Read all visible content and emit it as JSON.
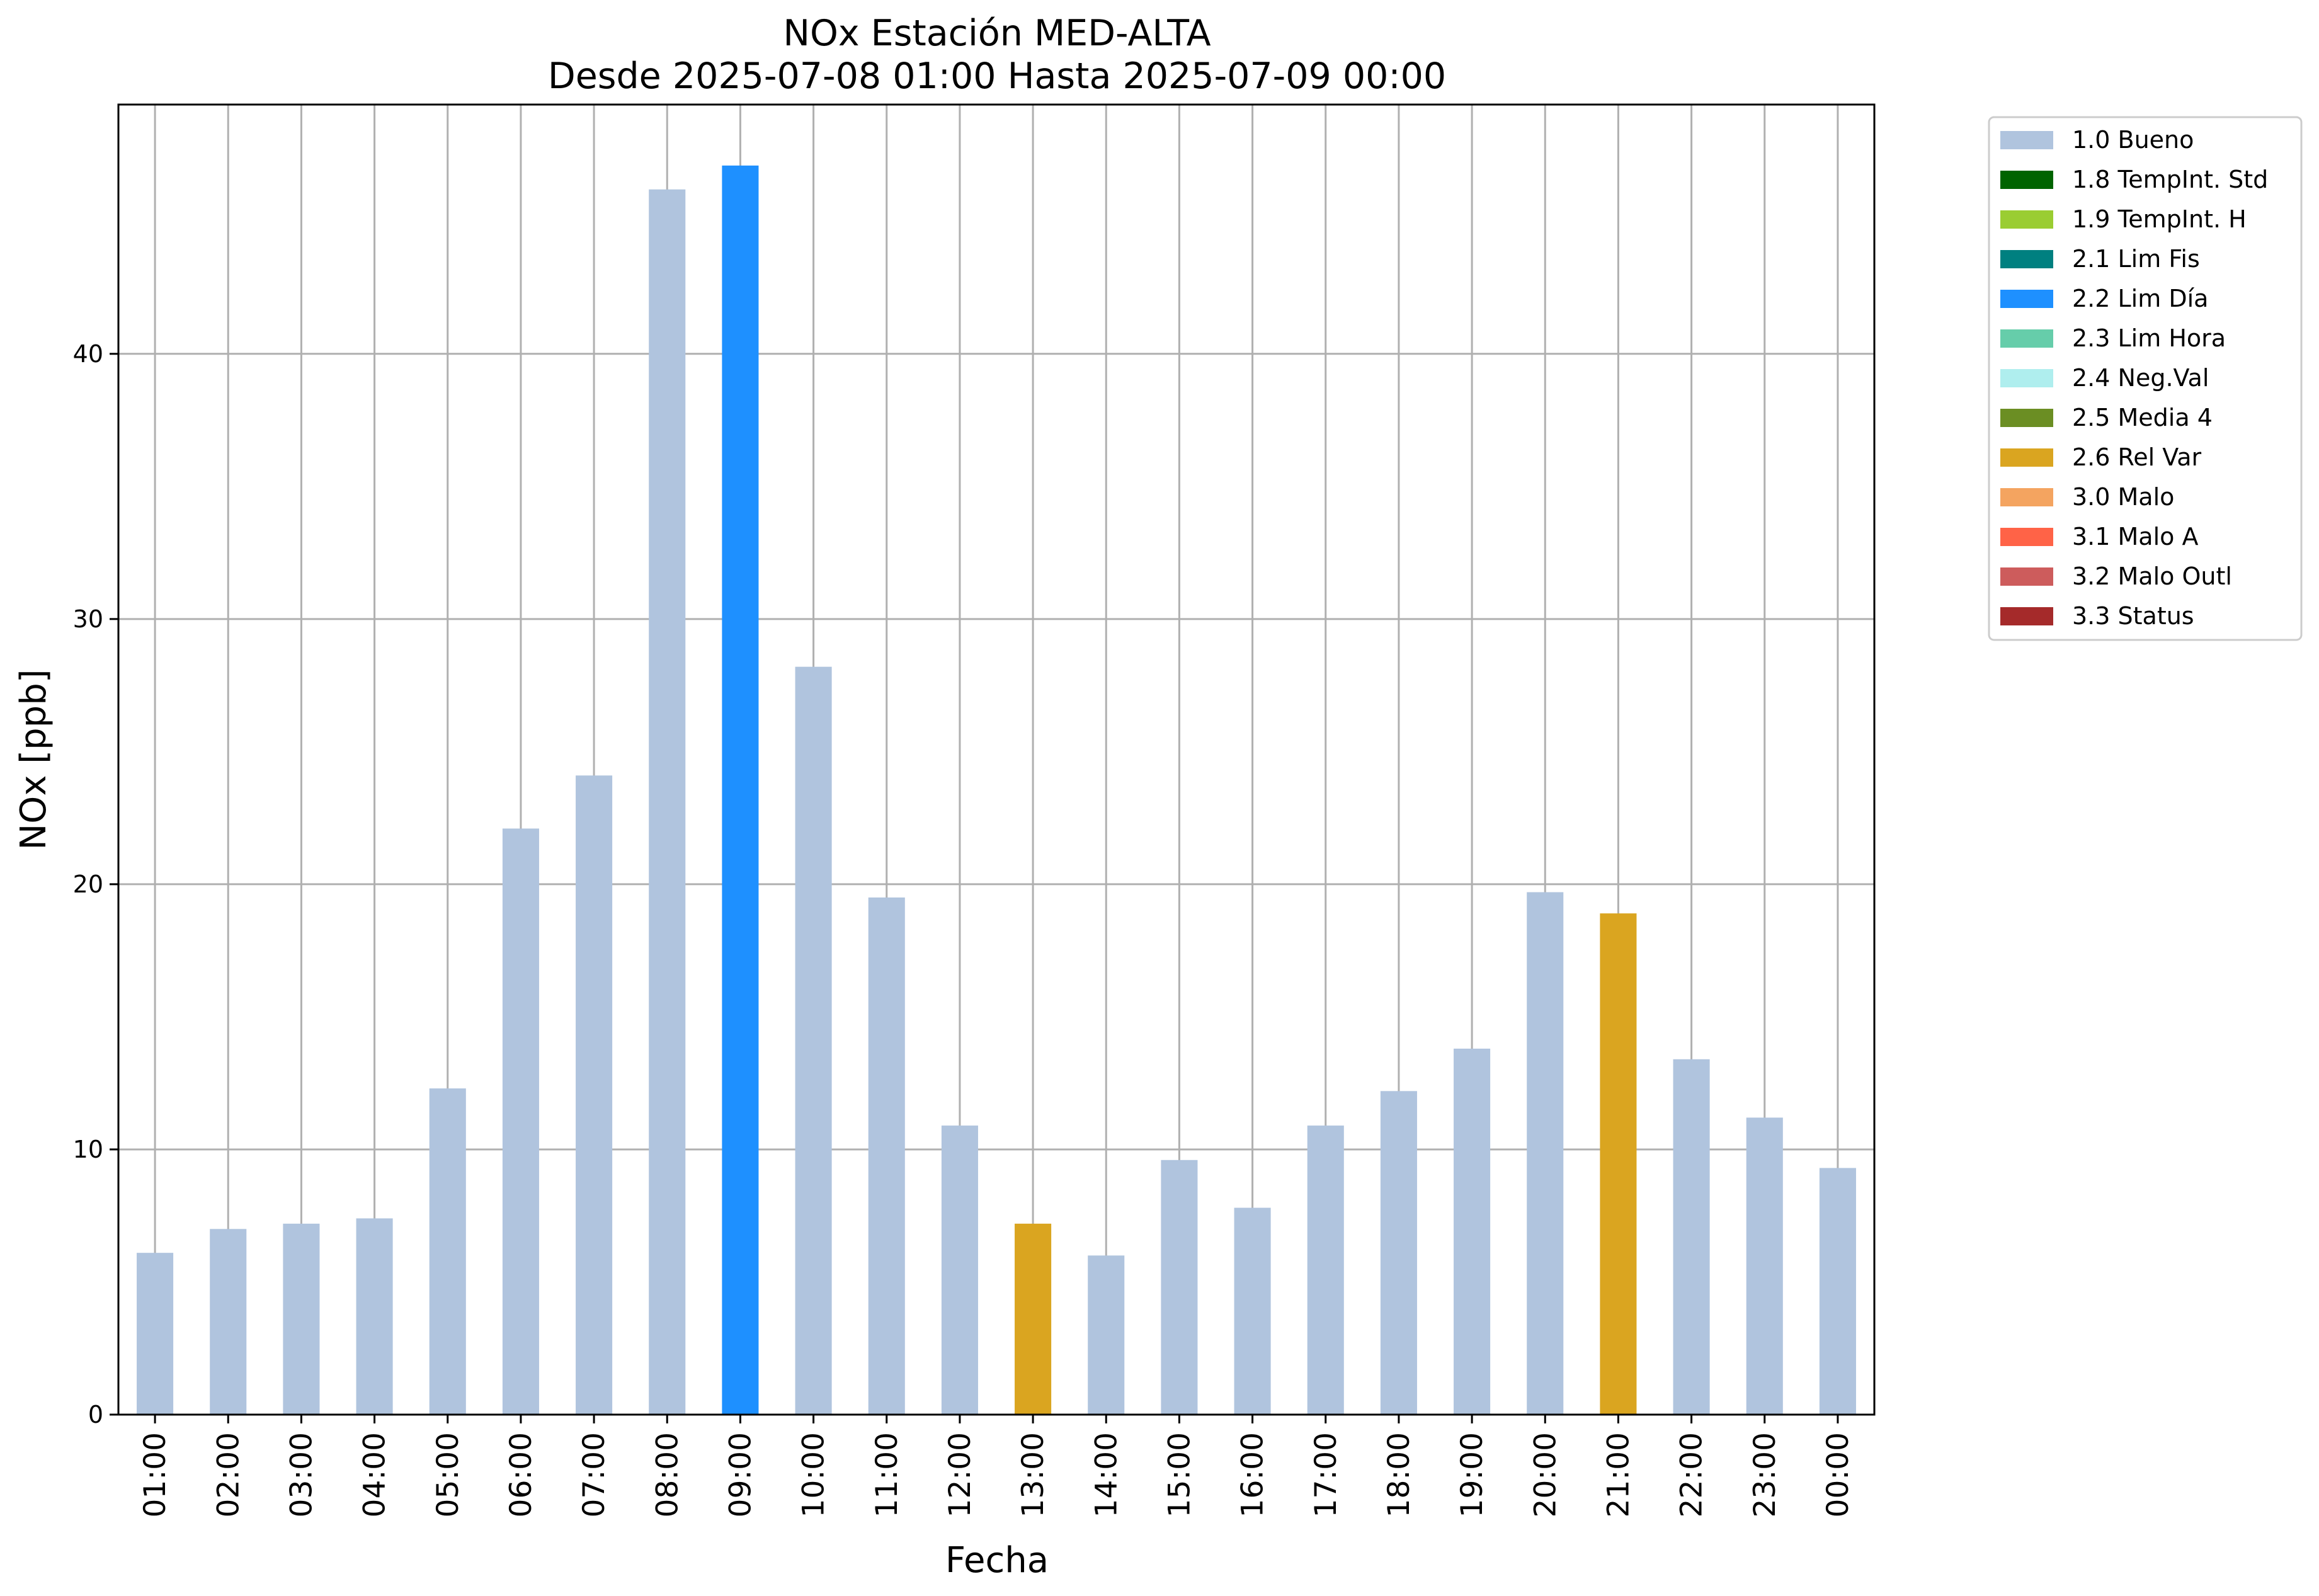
{
  "chart_data": {
    "type": "bar",
    "title": [
      "NOx Estación MED-ALTA",
      "Desde 2025-07-08 01:00 Hasta 2025-07-09 00:00"
    ],
    "xlabel": "Fecha",
    "ylabel": "NOx [ppb]",
    "ylim": [
      0,
      49.4
    ],
    "yticks": [
      0,
      10,
      20,
      30,
      40
    ],
    "grid": true,
    "legend_position": "outside-top-right",
    "categories": [
      "01:00",
      "02:00",
      "03:00",
      "04:00",
      "05:00",
      "06:00",
      "07:00",
      "08:00",
      "09:00",
      "10:00",
      "11:00",
      "12:00",
      "13:00",
      "14:00",
      "15:00",
      "16:00",
      "17:00",
      "18:00",
      "19:00",
      "20:00",
      "21:00",
      "22:00",
      "23:00",
      "00:00"
    ],
    "values": [
      6.1,
      7.0,
      7.2,
      7.4,
      12.3,
      22.1,
      24.1,
      46.2,
      47.1,
      28.2,
      19.5,
      10.9,
      7.2,
      6.0,
      9.6,
      7.8,
      10.9,
      12.2,
      13.8,
      19.7,
      18.9,
      13.4,
      11.2,
      9.3
    ],
    "flags": [
      "1.0",
      "1.0",
      "1.0",
      "1.0",
      "1.0",
      "1.0",
      "1.0",
      "1.0",
      "2.2",
      "1.0",
      "1.0",
      "1.0",
      "2.6",
      "1.0",
      "1.0",
      "1.0",
      "1.0",
      "1.0",
      "1.0",
      "1.0",
      "2.6",
      "1.0",
      "1.0",
      "1.0"
    ],
    "legend": [
      {
        "code": "1.0",
        "label": "1.0 Bueno",
        "color": "#b0c4de"
      },
      {
        "code": "1.8",
        "label": "1.8 TempInt. Std",
        "color": "#006400"
      },
      {
        "code": "1.9",
        "label": "1.9 TempInt. H",
        "color": "#9acd32"
      },
      {
        "code": "2.1",
        "label": "2.1 Lim Fis",
        "color": "#008080"
      },
      {
        "code": "2.2",
        "label": "2.2 Lim Día",
        "color": "#1e90ff"
      },
      {
        "code": "2.3",
        "label": "2.3 Lim Hora",
        "color": "#66cdaa"
      },
      {
        "code": "2.4",
        "label": "2.4 Neg.Val",
        "color": "#afeeee"
      },
      {
        "code": "2.5",
        "label": "2.5 Media 4",
        "color": "#6b8e23"
      },
      {
        "code": "2.6",
        "label": "2.6 Rel Var",
        "color": "#daa520"
      },
      {
        "code": "3.0",
        "label": "3.0 Malo",
        "color": "#f4a460"
      },
      {
        "code": "3.1",
        "label": "3.1 Malo A",
        "color": "#ff6347"
      },
      {
        "code": "3.2",
        "label": "3.2 Malo Outl",
        "color": "#cd5c5c"
      },
      {
        "code": "3.3",
        "label": "3.3 Status",
        "color": "#a52a2a"
      }
    ]
  }
}
